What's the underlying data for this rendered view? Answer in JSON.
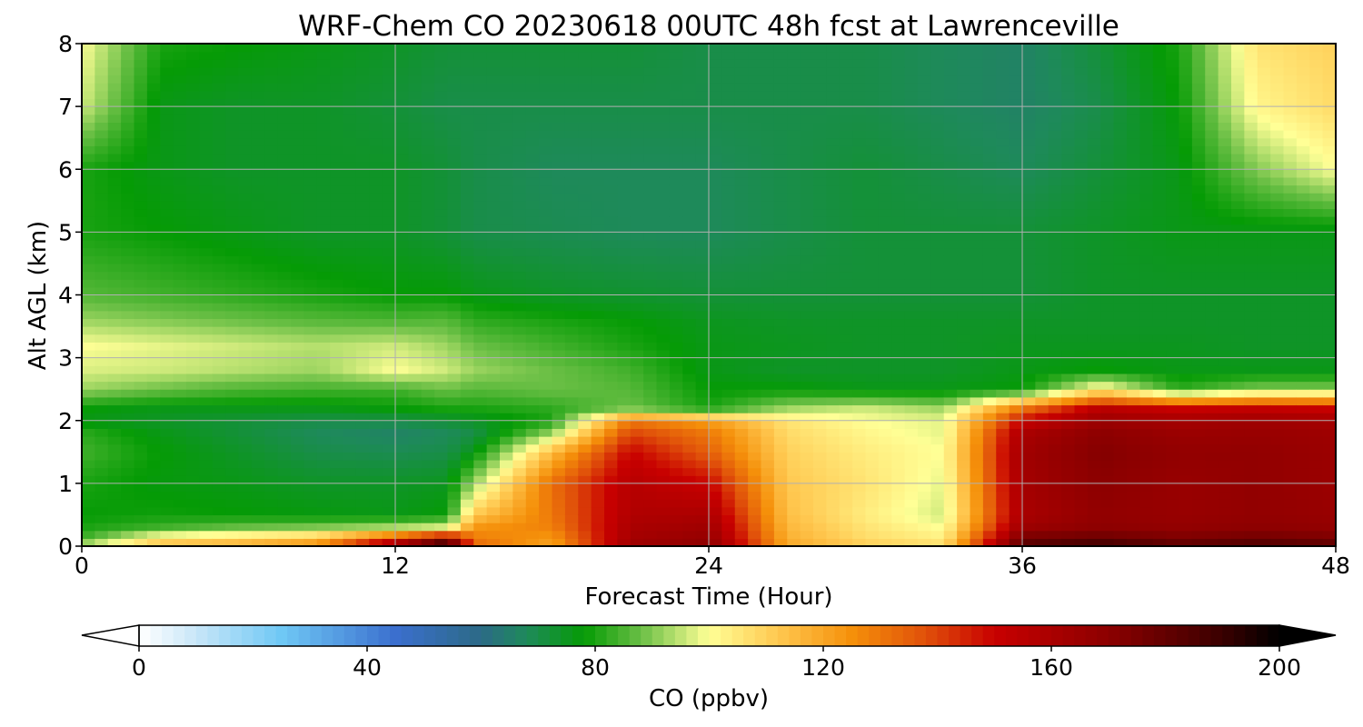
{
  "chart_data": {
    "type": "heatmap",
    "title": "WRF-Chem CO  20230618 00UTC 48h fcst at Lawrenceville",
    "xlabel": "Forecast Time (Hour)",
    "ylabel": "Alt AGL (km)",
    "xlim": [
      0,
      48
    ],
    "ylim": [
      0,
      8
    ],
    "xticks": [
      "0",
      "12",
      "24",
      "36",
      "48"
    ],
    "yticks": [
      "0",
      "1",
      "2",
      "3",
      "4",
      "5",
      "6",
      "7",
      "8"
    ],
    "grid": true,
    "x": [
      0,
      3,
      6,
      9,
      12,
      14,
      15,
      18,
      21,
      24,
      27,
      30,
      33,
      36,
      39,
      42,
      45,
      48
    ],
    "y": [
      0,
      0.1,
      0.3,
      0.5,
      1.0,
      1.5,
      1.8,
      2.0,
      2.2,
      2.5,
      2.8,
      3.2,
      3.6,
      4.0,
      5.0,
      6.0,
      7.0,
      8.0
    ],
    "values": [
      [
        100,
        115,
        118,
        125,
        165,
        200,
        135,
        120,
        165,
        170,
        120,
        112,
        108,
        185,
        195,
        185,
        190,
        185
      ],
      [
        84,
        108,
        112,
        118,
        150,
        175,
        130,
        122,
        162,
        168,
        118,
        108,
        104,
        178,
        180,
        175,
        178,
        175
      ],
      [
        80,
        84,
        88,
        90,
        94,
        98,
        124,
        128,
        160,
        164,
        116,
        106,
        100,
        165,
        170,
        168,
        170,
        168
      ],
      [
        78,
        79,
        78,
        77,
        76,
        78,
        112,
        130,
        158,
        160,
        114,
        104,
        96,
        160,
        168,
        166,
        168,
        166
      ],
      [
        80,
        77,
        76,
        74,
        74,
        75,
        92,
        132,
        156,
        150,
        112,
        106,
        98,
        162,
        170,
        166,
        168,
        165
      ],
      [
        84,
        78,
        74,
        70,
        69,
        70,
        76,
        115,
        150,
        135,
        110,
        104,
        100,
        163,
        172,
        168,
        168,
        165
      ],
      [
        82,
        76,
        72,
        68,
        66,
        68,
        70,
        92,
        140,
        130,
        108,
        102,
        98,
        160,
        170,
        165,
        166,
        164
      ],
      [
        76,
        74,
        72,
        70,
        70,
        72,
        74,
        80,
        130,
        122,
        106,
        100,
        98,
        150,
        165,
        162,
        164,
        162
      ],
      [
        78,
        76,
        76,
        76,
        78,
        80,
        80,
        82,
        88,
        80,
        92,
        96,
        92,
        130,
        155,
        150,
        152,
        150
      ],
      [
        92,
        88,
        85,
        84,
        84,
        88,
        86,
        88,
        86,
        78,
        78,
        76,
        76,
        78,
        104,
        82,
        90,
        90
      ],
      [
        97,
        96,
        94,
        92,
        100,
        96,
        92,
        88,
        84,
        76,
        74,
        74,
        74,
        76,
        78,
        76,
        76,
        76
      ],
      [
        100,
        98,
        96,
        94,
        96,
        92,
        88,
        84,
        80,
        76,
        75,
        74,
        74,
        75,
        75,
        75,
        74,
        74
      ],
      [
        92,
        90,
        88,
        86,
        85,
        86,
        82,
        80,
        78,
        75,
        74,
        74,
        74,
        74,
        74,
        74,
        74,
        74
      ],
      [
        86,
        84,
        82,
        80,
        78,
        78,
        76,
        74,
        73,
        72,
        72,
        72,
        72,
        72,
        74,
        74,
        74,
        74
      ],
      [
        80,
        78,
        76,
        74,
        74,
        72,
        70,
        69,
        68,
        68,
        70,
        72,
        72,
        72,
        74,
        76,
        76,
        76
      ],
      [
        80,
        76,
        74,
        74,
        74,
        72,
        70,
        68,
        68,
        68,
        70,
        72,
        70,
        68,
        72,
        76,
        90,
        100
      ],
      [
        96,
        76,
        74,
        74,
        72,
        70,
        70,
        70,
        70,
        70,
        70,
        70,
        68,
        66,
        70,
        78,
        102,
        108
      ],
      [
        100,
        80,
        78,
        76,
        74,
        72,
        72,
        72,
        72,
        70,
        70,
        70,
        68,
        66,
        72,
        80,
        106,
        110
      ]
    ],
    "colorbar": {
      "label": "CO  (ppbv)",
      "ticks": [
        "0",
        "40",
        "80",
        "120",
        "160",
        "200"
      ],
      "range": [
        0,
        200
      ],
      "extend": "both",
      "colorscale": [
        [
          0,
          "#ffffff"
        ],
        [
          10,
          "#c8e6f8"
        ],
        [
          25,
          "#6fc8f5"
        ],
        [
          45,
          "#3b6fce"
        ],
        [
          60,
          "#2c6a86"
        ],
        [
          68,
          "#1e8a5a"
        ],
        [
          78,
          "#059b05"
        ],
        [
          88,
          "#6abf45"
        ],
        [
          100,
          "#ffff96"
        ],
        [
          112,
          "#ffc850"
        ],
        [
          125,
          "#f5900a"
        ],
        [
          138,
          "#e0500a"
        ],
        [
          150,
          "#c80000"
        ],
        [
          170,
          "#8c0000"
        ],
        [
          190,
          "#3a0000"
        ],
        [
          200,
          "#000000"
        ]
      ]
    }
  }
}
